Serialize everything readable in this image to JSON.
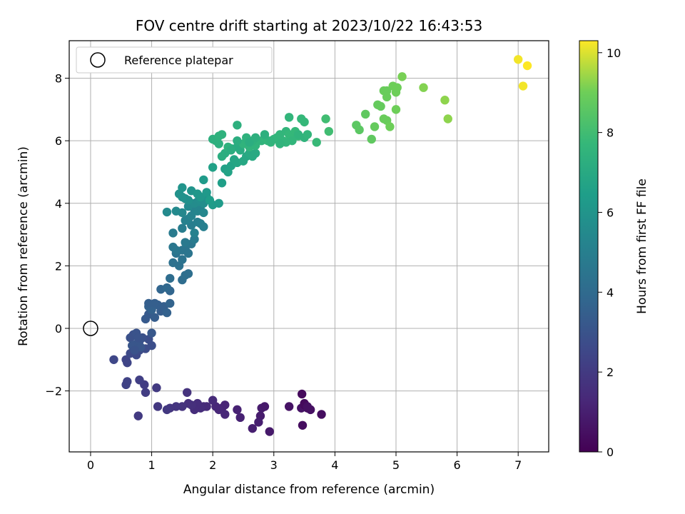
{
  "chart_data": {
    "type": "scatter",
    "title": "FOV centre drift starting at 2023/10/22 16:43:53",
    "xlabel": "Angular distance from reference (arcmin)",
    "ylabel": "Rotation from reference (arcmin)",
    "xlim": [
      -0.35,
      7.5
    ],
    "ylim": [
      -3.95,
      9.2
    ],
    "xticks": [
      0,
      1,
      2,
      3,
      4,
      5,
      6,
      7
    ],
    "yticks": [
      -2,
      0,
      2,
      4,
      6,
      8
    ],
    "grid": true,
    "legend": {
      "placement": "top-left",
      "entries": [
        "Reference platepar"
      ]
    },
    "reference_point": {
      "x": 0,
      "y": 0,
      "marker": "open-circle"
    },
    "colorbar": {
      "label": "Hours from first FF file",
      "range": [
        0,
        10.3
      ],
      "ticks": [
        0,
        2,
        4,
        6,
        8,
        10
      ],
      "colormap": "viridis"
    },
    "points": [
      [
        3.46,
        -2.1,
        0.3
      ],
      [
        3.5,
        -2.4,
        0.3
      ],
      [
        3.55,
        -2.55,
        0.4
      ],
      [
        3.6,
        -2.6,
        0.5
      ],
      [
        3.45,
        -2.55,
        0.6
      ],
      [
        3.47,
        -3.1,
        0.4
      ],
      [
        3.78,
        -2.75,
        0.4
      ],
      [
        3.25,
        -2.5,
        0.6
      ],
      [
        3.5,
        -2.45,
        0.3
      ],
      [
        3.55,
        -2.5,
        0.5
      ],
      [
        2.93,
        -3.3,
        0.8
      ],
      [
        2.8,
        -2.55,
        0.9
      ],
      [
        2.85,
        -2.5,
        0.8
      ],
      [
        2.78,
        -2.8,
        0.9
      ],
      [
        2.75,
        -3.0,
        1.0
      ],
      [
        2.65,
        -3.2,
        1.0
      ],
      [
        2.45,
        -2.85,
        1.1
      ],
      [
        2.4,
        -2.6,
        1.1
      ],
      [
        2.2,
        -2.45,
        1.2
      ],
      [
        2.15,
        -2.55,
        1.2
      ],
      [
        2.1,
        -2.6,
        1.3
      ],
      [
        2.05,
        -2.5,
        1.3
      ],
      [
        2.2,
        -2.75,
        1.3
      ],
      [
        2.0,
        -2.3,
        1.4
      ],
      [
        1.9,
        -2.5,
        1.4
      ],
      [
        1.85,
        -2.5,
        1.4
      ],
      [
        1.8,
        -2.55,
        1.5
      ],
      [
        1.75,
        -2.4,
        1.5
      ],
      [
        1.7,
        -2.6,
        1.5
      ],
      [
        1.65,
        -2.45,
        1.6
      ],
      [
        1.6,
        -2.4,
        1.6
      ],
      [
        1.58,
        -2.05,
        1.7
      ],
      [
        1.5,
        -2.5,
        1.7
      ],
      [
        1.4,
        -2.5,
        1.8
      ],
      [
        1.3,
        -2.55,
        1.8
      ],
      [
        1.25,
        -2.6,
        1.9
      ],
      [
        1.1,
        -2.5,
        1.9
      ],
      [
        1.08,
        -1.9,
        2.0
      ],
      [
        0.9,
        -2.05,
        2.1
      ],
      [
        0.88,
        -1.8,
        2.1
      ],
      [
        0.8,
        -1.65,
        2.2
      ],
      [
        0.78,
        -2.8,
        2.0
      ],
      [
        0.6,
        -1.7,
        2.3
      ],
      [
        0.58,
        -1.8,
        2.3
      ],
      [
        0.6,
        -1.1,
        2.4
      ],
      [
        0.58,
        -1.0,
        2.4
      ],
      [
        0.38,
        -1.0,
        2.5
      ],
      [
        0.65,
        -0.8,
        2.6
      ],
      [
        0.75,
        -0.85,
        2.6
      ],
      [
        0.8,
        -0.7,
        2.7
      ],
      [
        0.9,
        -0.65,
        2.7
      ],
      [
        1.0,
        -0.55,
        2.8
      ],
      [
        0.95,
        -0.35,
        2.8
      ],
      [
        0.85,
        -0.3,
        2.9
      ],
      [
        0.7,
        -0.2,
        2.9
      ],
      [
        0.65,
        -0.3,
        2.9
      ],
      [
        0.75,
        -0.15,
        3.0
      ],
      [
        0.8,
        -0.4,
        3.0
      ],
      [
        0.75,
        -0.5,
        3.1
      ],
      [
        0.68,
        -0.55,
        3.1
      ],
      [
        0.82,
        -0.6,
        3.1
      ],
      [
        0.72,
        -0.7,
        3.0
      ],
      [
        0.78,
        -0.3,
        3.0
      ],
      [
        1.0,
        -0.15,
        3.2
      ],
      [
        0.9,
        0.3,
        3.3
      ],
      [
        0.95,
        0.45,
        3.3
      ],
      [
        1.05,
        0.35,
        3.4
      ],
      [
        1.15,
        0.55,
        3.4
      ],
      [
        1.1,
        0.75,
        3.5
      ],
      [
        1.2,
        0.7,
        3.5
      ],
      [
        1.25,
        0.5,
        3.6
      ],
      [
        1.0,
        0.6,
        3.6
      ],
      [
        0.95,
        0.7,
        3.6
      ],
      [
        1.3,
        0.8,
        3.7
      ],
      [
        1.3,
        1.2,
        3.8
      ],
      [
        1.15,
        1.25,
        3.8
      ],
      [
        1.25,
        1.3,
        3.9
      ],
      [
        1.05,
        0.8,
        3.5
      ],
      [
        0.95,
        0.8,
        3.5
      ],
      [
        1.3,
        1.6,
        4.1
      ],
      [
        1.5,
        1.55,
        4.1
      ],
      [
        1.55,
        1.7,
        4.2
      ],
      [
        1.6,
        1.75,
        4.2
      ],
      [
        1.45,
        2.0,
        4.3
      ],
      [
        1.35,
        2.1,
        4.3
      ],
      [
        1.5,
        2.2,
        4.4
      ],
      [
        1.4,
        2.4,
        4.4
      ],
      [
        1.5,
        2.5,
        4.5
      ],
      [
        1.55,
        2.55,
        4.5
      ],
      [
        1.6,
        2.4,
        4.5
      ],
      [
        1.65,
        2.7,
        4.6
      ],
      [
        1.35,
        2.6,
        4.6
      ],
      [
        1.4,
        2.5,
        4.6
      ],
      [
        1.55,
        2.75,
        4.7
      ],
      [
        1.7,
        2.85,
        4.8
      ],
      [
        1.35,
        3.05,
        4.8
      ],
      [
        1.5,
        3.2,
        4.9
      ],
      [
        1.65,
        3.3,
        4.9
      ],
      [
        1.75,
        3.4,
        5.0
      ],
      [
        1.8,
        3.35,
        5.0
      ],
      [
        1.85,
        3.25,
        5.0
      ],
      [
        1.7,
        3.05,
        5.1
      ],
      [
        1.6,
        3.5,
        5.1
      ],
      [
        1.55,
        3.45,
        5.1
      ],
      [
        1.65,
        3.6,
        5.2
      ],
      [
        1.7,
        3.8,
        5.2
      ],
      [
        1.75,
        3.75,
        5.3
      ],
      [
        1.8,
        3.9,
        5.3
      ],
      [
        1.85,
        3.7,
        5.4
      ],
      [
        1.5,
        3.7,
        5.4
      ],
      [
        1.4,
        3.75,
        5.5
      ],
      [
        1.25,
        3.72,
        5.5
      ],
      [
        1.6,
        3.9,
        5.5
      ],
      [
        1.7,
        4.0,
        5.6
      ],
      [
        1.75,
        4.05,
        5.6
      ],
      [
        1.8,
        4.1,
        5.7
      ],
      [
        1.85,
        4.0,
        5.7
      ],
      [
        1.9,
        4.2,
        5.8
      ],
      [
        1.6,
        4.1,
        5.8
      ],
      [
        1.55,
        4.15,
        5.8
      ],
      [
        1.5,
        4.2,
        5.9
      ],
      [
        1.45,
        4.3,
        5.9
      ],
      [
        1.5,
        4.5,
        6.0
      ],
      [
        1.65,
        4.4,
        6.0
      ],
      [
        1.75,
        4.3,
        6.1
      ],
      [
        1.8,
        4.2,
        6.1
      ],
      [
        1.9,
        4.35,
        6.2
      ],
      [
        1.85,
        4.75,
        6.3
      ],
      [
        2.0,
        3.95,
        6.3
      ],
      [
        2.1,
        4.0,
        6.3
      ],
      [
        1.95,
        4.1,
        6.4
      ],
      [
        2.15,
        4.65,
        6.5
      ],
      [
        2.2,
        5.1,
        6.6
      ],
      [
        2.0,
        5.15,
        6.6
      ],
      [
        2.3,
        5.2,
        6.7
      ],
      [
        2.25,
        5.0,
        6.7
      ],
      [
        2.35,
        5.4,
        6.8
      ],
      [
        2.4,
        5.3,
        6.8
      ],
      [
        2.5,
        5.35,
        6.9
      ],
      [
        2.55,
        5.5,
        6.9
      ],
      [
        2.6,
        5.6,
        7.0
      ],
      [
        2.65,
        5.5,
        7.0
      ],
      [
        2.7,
        5.6,
        7.0
      ],
      [
        2.45,
        5.7,
        7.1
      ],
      [
        2.4,
        5.8,
        7.1
      ],
      [
        2.3,
        5.75,
        7.1
      ],
      [
        2.2,
        5.6,
        7.2
      ],
      [
        2.15,
        5.5,
        7.2
      ],
      [
        2.1,
        5.9,
        7.3
      ],
      [
        2.05,
        6.0,
        7.3
      ],
      [
        2.0,
        6.05,
        7.3
      ],
      [
        2.1,
        6.15,
        7.4
      ],
      [
        2.15,
        6.2,
        7.4
      ],
      [
        2.25,
        5.8,
        7.4
      ],
      [
        2.5,
        5.9,
        7.5
      ],
      [
        2.55,
        6.0,
        7.5
      ],
      [
        2.6,
        5.8,
        7.5
      ],
      [
        2.7,
        5.85,
        7.5
      ],
      [
        2.8,
        6.0,
        7.5
      ],
      [
        2.85,
        6.1,
        7.6
      ],
      [
        2.9,
        6.0,
        7.6
      ],
      [
        2.95,
        5.95,
        7.6
      ],
      [
        3.0,
        6.05,
        7.6
      ],
      [
        3.05,
        6.1,
        7.6
      ],
      [
        3.1,
        6.2,
        7.6
      ],
      [
        3.15,
        6.0,
        7.6
      ],
      [
        3.2,
        6.3,
        7.6
      ],
      [
        3.25,
        6.2,
        7.7
      ],
      [
        3.3,
        6.1,
        7.7
      ],
      [
        3.35,
        6.3,
        7.7
      ],
      [
        3.4,
        6.15,
        7.7
      ],
      [
        3.45,
        6.7,
        7.7
      ],
      [
        3.5,
        6.6,
        7.7
      ],
      [
        3.25,
        6.75,
        7.6
      ],
      [
        3.3,
        6.0,
        7.6
      ],
      [
        3.2,
        5.95,
        7.6
      ],
      [
        3.1,
        5.9,
        7.5
      ],
      [
        2.95,
        6.0,
        7.5
      ],
      [
        2.65,
        6.0,
        7.4
      ],
      [
        2.55,
        6.1,
        7.4
      ],
      [
        2.4,
        6.5,
        7.3
      ],
      [
        2.4,
        6.0,
        7.2
      ],
      [
        2.3,
        5.7,
        7.2
      ],
      [
        2.6,
        5.95,
        7.2
      ],
      [
        2.7,
        6.1,
        7.3
      ],
      [
        2.85,
        6.2,
        7.3
      ],
      [
        3.4,
        6.2,
        7.5
      ],
      [
        3.5,
        6.1,
        7.5
      ],
      [
        3.55,
        6.2,
        7.6
      ],
      [
        3.7,
        5.95,
        7.8
      ],
      [
        3.85,
        6.7,
        8.0
      ],
      [
        3.9,
        6.3,
        8.0
      ],
      [
        4.35,
        6.5,
        8.6
      ],
      [
        4.4,
        6.35,
        8.6
      ],
      [
        4.5,
        6.85,
        8.7
      ],
      [
        4.6,
        6.05,
        8.7
      ],
      [
        4.65,
        6.45,
        8.8
      ],
      [
        4.7,
        7.15,
        8.8
      ],
      [
        4.75,
        7.1,
        8.8
      ],
      [
        4.8,
        7.6,
        8.9
      ],
      [
        4.85,
        7.4,
        8.9
      ],
      [
        4.8,
        6.7,
        8.9
      ],
      [
        4.85,
        6.65,
        8.9
      ],
      [
        4.9,
        6.45,
        9.0
      ],
      [
        4.95,
        7.75,
        9.0
      ],
      [
        5.0,
        7.55,
        9.0
      ],
      [
        5.02,
        7.7,
        9.0
      ],
      [
        5.0,
        7.0,
        9.0
      ],
      [
        4.85,
        7.6,
        8.9
      ],
      [
        5.1,
        8.05,
        9.1
      ],
      [
        5.45,
        7.7,
        9.2
      ],
      [
        5.8,
        7.3,
        9.3
      ],
      [
        5.85,
        6.7,
        9.3
      ],
      [
        7.0,
        8.6,
        10.2
      ],
      [
        7.15,
        8.4,
        10.3
      ],
      [
        7.08,
        7.75,
        10.2
      ]
    ]
  }
}
